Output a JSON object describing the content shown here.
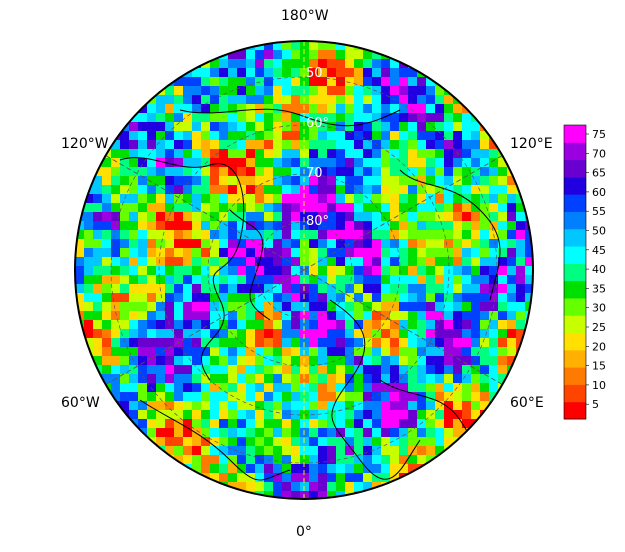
{
  "map": {
    "projection": "north-polar-stereographic",
    "longitude_labels": {
      "top": "180°W",
      "bottom": "0°",
      "upper_left": "120°W",
      "upper_right": "120°E",
      "lower_left": "60°W",
      "lower_right": "60°E"
    },
    "latitude_labels": [
      "50",
      "60°",
      "70",
      "80°"
    ],
    "graticule_color": "#ffff00",
    "coastline_color": "#000000"
  },
  "colorbar": {
    "ticks": [
      "75",
      "70",
      "65",
      "60",
      "55",
      "50",
      "45",
      "40",
      "35",
      "30",
      "25",
      "20",
      "15",
      "10",
      "5"
    ],
    "colors": [
      "#ff0000",
      "#ff4400",
      "#ff7a00",
      "#ffb000",
      "#ffe000",
      "#c8ff00",
      "#66ff00",
      "#00e000",
      "#00ff80",
      "#00ffff",
      "#00c8ff",
      "#0080ff",
      "#0040ff",
      "#2000e0",
      "#6a00d0",
      "#9a00e0",
      "#ff00ff"
    ]
  }
}
